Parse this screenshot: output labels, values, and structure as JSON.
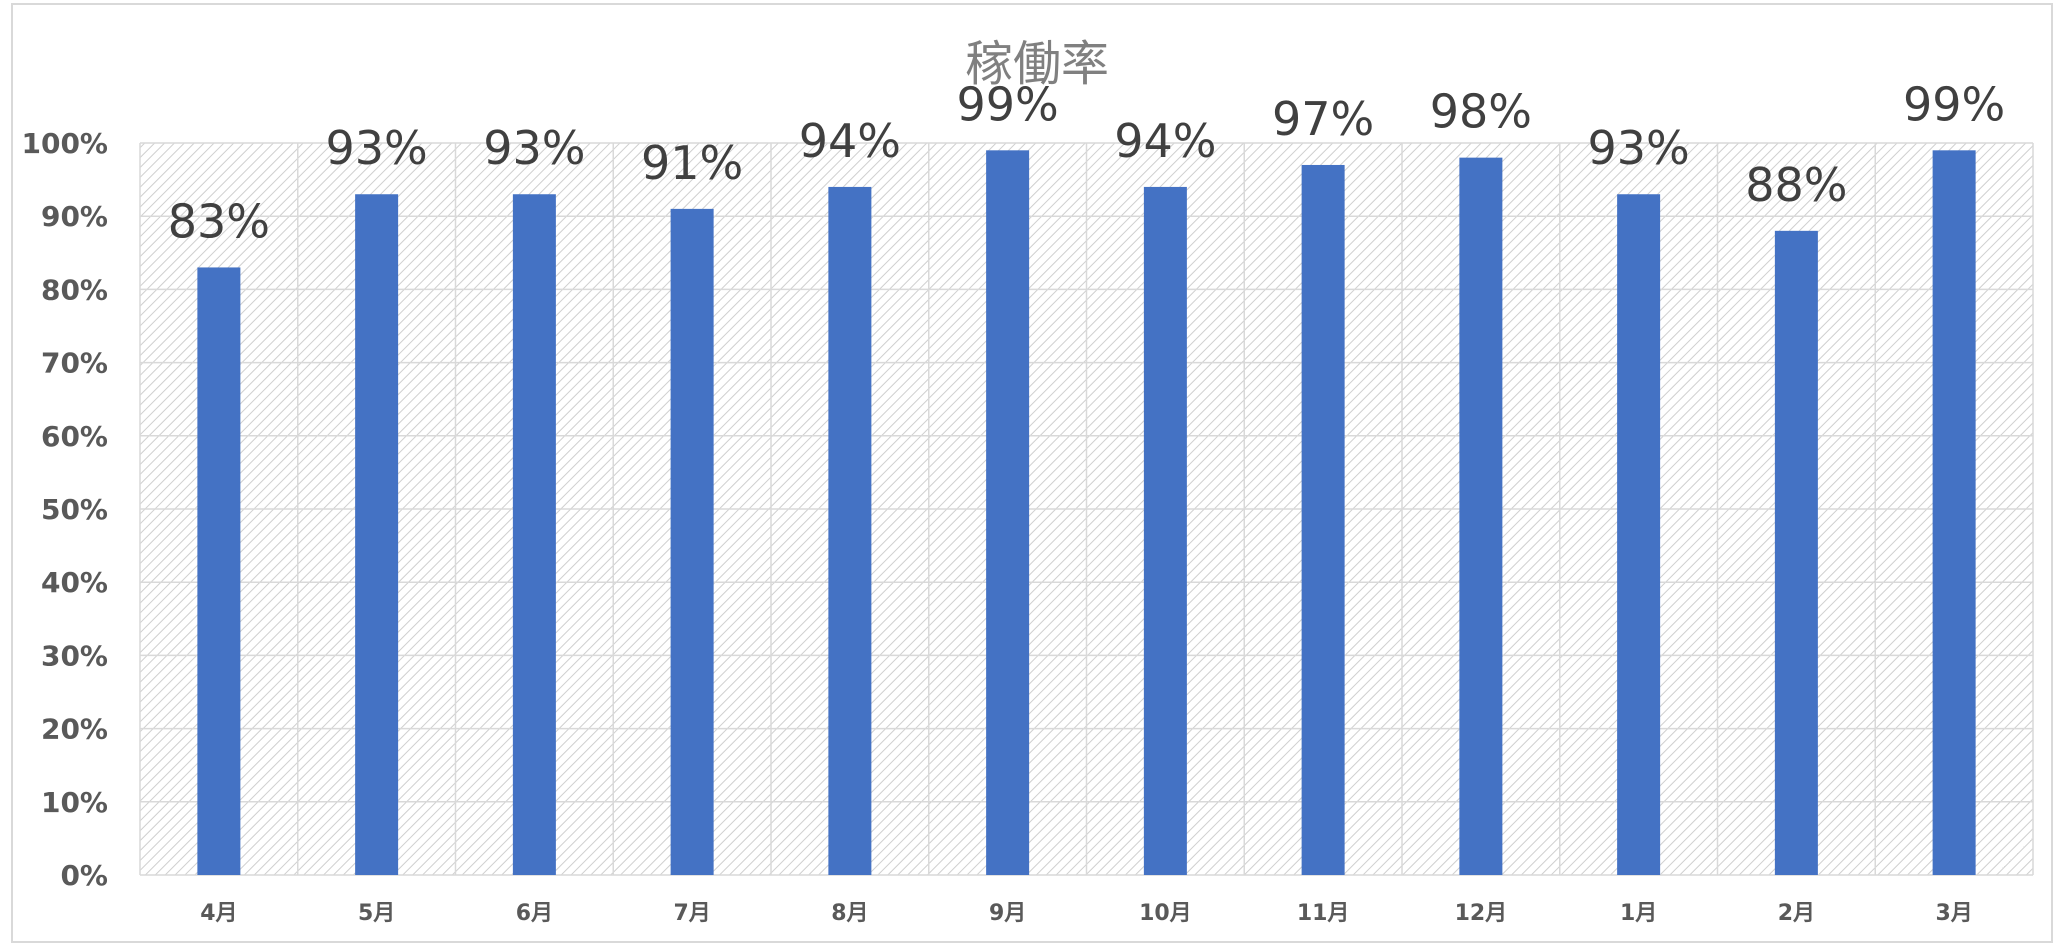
{
  "chart_data": {
    "type": "bar",
    "title": "稼働率",
    "categories": [
      "4月",
      "5月",
      "6月",
      "7月",
      "8月",
      "9月",
      "10月",
      "11月",
      "12月",
      "1月",
      "2月",
      "3月"
    ],
    "values": [
      83,
      93,
      93,
      91,
      94,
      99,
      94,
      97,
      98,
      93,
      88,
      99
    ],
    "data_labels": [
      "83%",
      "93%",
      "93%",
      "91%",
      "94%",
      "99%",
      "94%",
      "97%",
      "98%",
      "93%",
      "88%",
      "99%"
    ],
    "yticks": [
      0,
      10,
      20,
      30,
      40,
      50,
      60,
      70,
      80,
      90,
      100
    ],
    "ytick_labels": [
      "0%",
      "10%",
      "20%",
      "30%",
      "40%",
      "50%",
      "60%",
      "70%",
      "80%",
      "90%",
      "100%"
    ],
    "ylim": [
      0,
      100
    ],
    "grid": true,
    "legend": "none",
    "bar_color": "#4472C4",
    "plot_fill": "hatched-gray"
  }
}
